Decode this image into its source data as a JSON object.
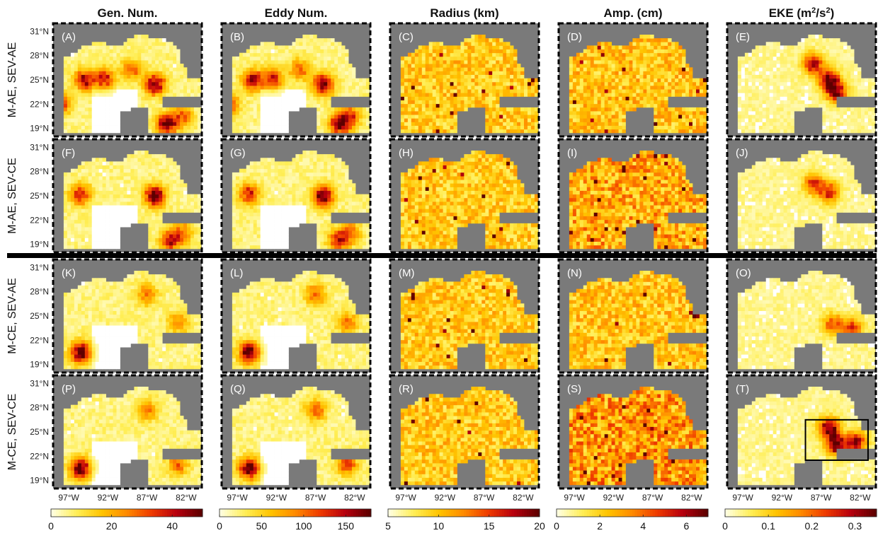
{
  "column_titles": [
    "Gen. Num.",
    "Eddy Num.",
    "Radius (km)",
    "Amp. (cm)",
    "EKE (m"
  ],
  "eke_title_parts": {
    "base": "EKE (m",
    "sup1": "2",
    "mid": "/s",
    "sup2": "2",
    "end": ")"
  },
  "row_labels": [
    "M-AE, SEV-AE",
    "M-AE, SEV-CE",
    "M-CE, SEV-AE",
    "M-CE, SEV-CE"
  ],
  "panel_labels": [
    "(A)",
    "(B)",
    "(C)",
    "(D)",
    "(E)",
    "(F)",
    "(G)",
    "(H)",
    "(I)",
    "(J)",
    "(K)",
    "(L)",
    "(M)",
    "(N)",
    "(O)",
    "(P)",
    "(Q)",
    "(R)",
    "(S)",
    "(T)"
  ],
  "lat_ticks": [
    "31°N",
    "28°N",
    "25°N",
    "22°N",
    "19°N"
  ],
  "lon_ticks": [
    "97°W",
    "92°W",
    "87°W",
    "82°W"
  ],
  "colorbars": [
    {
      "ticks": [
        "0",
        "20",
        "40"
      ],
      "range": [
        0,
        50
      ]
    },
    {
      "ticks": [
        "0",
        "50",
        "100",
        "150"
      ],
      "range": [
        0,
        180
      ]
    },
    {
      "ticks": [
        "5",
        "10",
        "15",
        "20"
      ],
      "range": [
        5,
        20
      ]
    },
    {
      "ticks": [
        "0",
        "2",
        "4",
        "6"
      ],
      "range": [
        0,
        7
      ]
    },
    {
      "ticks": [
        "0",
        "0.1",
        "0.2",
        "0.3"
      ],
      "range": [
        0,
        0.35
      ]
    }
  ],
  "colors": {
    "land": "#7a7a7a",
    "ocean": "#ffffff",
    "separator": "#000000",
    "colormap": [
      "#ffffe0",
      "#ffee55",
      "#ffc400",
      "#ff8a00",
      "#ee3a00",
      "#b8000e",
      "#5e0000"
    ]
  },
  "chart_data": {
    "type": "heatmap",
    "grid": "5 columns x 4 rows of gridded maps of the Gulf of Mexico",
    "lon_range": [
      -99,
      -80
    ],
    "lat_range": [
      18,
      32
    ],
    "highlight_box": {
      "panel": "(T)",
      "lon": [
        -89,
        -81
      ],
      "lat": [
        21.5,
        26.5
      ]
    },
    "hotspots": [
      {
        "panel": "(A)",
        "spots": [
          [
            -95,
            25,
            0.8
          ],
          [
            -92.5,
            25.2,
            0.7
          ],
          [
            -89,
            26.3,
            0.5
          ],
          [
            -86,
            24.5,
            0.95
          ],
          [
            -98,
            22,
            0.6
          ],
          [
            -84.5,
            19.5,
            0.9
          ],
          [
            -82.5,
            20.5,
            0.55
          ]
        ]
      },
      {
        "panel": "(B)",
        "spots": [
          [
            -95,
            25,
            0.8
          ],
          [
            -92.5,
            25.2,
            0.7
          ],
          [
            -89,
            26.3,
            0.5
          ],
          [
            -86,
            24.5,
            0.95
          ],
          [
            -98,
            22,
            0.6
          ],
          [
            -84,
            19.5,
            0.9
          ],
          [
            -82.5,
            20.5,
            0.55
          ]
        ]
      },
      {
        "panel": "(F)",
        "spots": [
          [
            -95.5,
            25.2,
            0.7
          ],
          [
            -86,
            25,
            1.0
          ],
          [
            -84,
            19.5,
            0.7
          ],
          [
            -82.5,
            20.5,
            0.45
          ]
        ]
      },
      {
        "panel": "(G)",
        "spots": [
          [
            -95.5,
            25.2,
            0.7
          ],
          [
            -86,
            25,
            1.0
          ],
          [
            -84,
            19.5,
            0.7
          ],
          [
            -82.5,
            20.5,
            0.45
          ]
        ]
      },
      {
        "panel": "(K)",
        "spots": [
          [
            -95.5,
            20.5,
            1.0
          ],
          [
            -87,
            27.7,
            0.45
          ],
          [
            -83,
            24.2,
            0.4
          ]
        ]
      },
      {
        "panel": "(L)",
        "spots": [
          [
            -95.5,
            20.5,
            1.0
          ],
          [
            -87,
            27.7,
            0.5
          ],
          [
            -83,
            24.2,
            0.45
          ]
        ]
      },
      {
        "panel": "(P)",
        "spots": [
          [
            -95.5,
            20.5,
            1.0
          ],
          [
            -87,
            27.7,
            0.45
          ],
          [
            -83,
            21,
            0.5
          ]
        ]
      },
      {
        "panel": "(Q)",
        "spots": [
          [
            -95.5,
            20.5,
            1.0
          ],
          [
            -87,
            27.7,
            0.55
          ],
          [
            -83,
            21,
            0.6
          ]
        ]
      },
      {
        "panel": "(E)",
        "spots": [
          [
            -88,
            27,
            0.8
          ],
          [
            -86,
            25,
            0.95
          ],
          [
            -85,
            23.5,
            0.85
          ]
        ]
      },
      {
        "panel": "(J)",
        "spots": [
          [
            -88,
            26.5,
            0.6
          ],
          [
            -86,
            25.5,
            0.7
          ]
        ]
      },
      {
        "panel": "(O)",
        "spots": [
          [
            -85.5,
            24,
            0.6
          ],
          [
            -83,
            23.5,
            0.6
          ]
        ]
      },
      {
        "panel": "(T)",
        "spots": [
          [
            -86,
            25.5,
            0.95
          ],
          [
            -85,
            23.5,
            1.0
          ],
          [
            -82.5,
            23.8,
            0.8
          ]
        ]
      }
    ]
  }
}
